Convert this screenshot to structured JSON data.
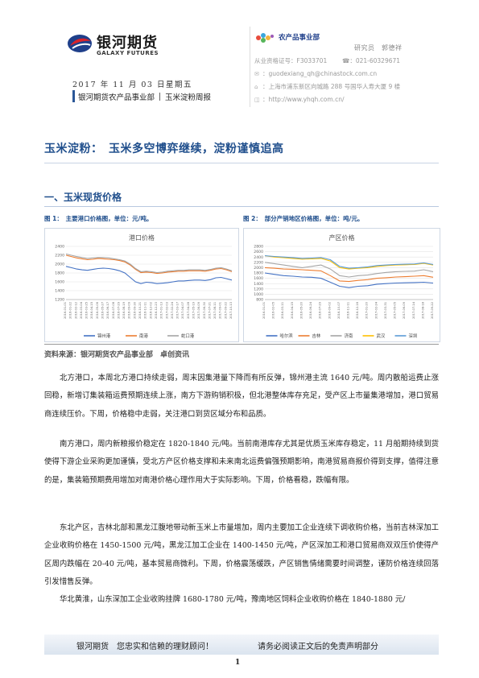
{
  "header": {
    "company_cn": "银河期货",
    "company_en": "GALAXY FUTURES",
    "date": "2017 年 11 月 03 日星期五",
    "brand_left": "银河期货农产品事业部",
    "brand_right": "玉米淀粉周报"
  },
  "contact": {
    "dept_name": "农产品事业部",
    "analyst": "研究员　郭德祥",
    "license": "从业资格证号：F3033701",
    "phone": "☎：021-60329671",
    "email": "guodexiang_qh@chinastock.com.cn",
    "address": "上海市浦东新区向城路 288 号国华人寿大厦 9 楼",
    "website": "http://www.yhqh.com.cn/"
  },
  "title": "玉米淀粉：　玉米多空博弈继续，淀粉谨慎追高",
  "section1": "一、玉米现货价格",
  "fig1_caption": "图 1：　主要港口价格图，单位：元/吨。",
  "fig2_caption": "图 2：　部分产销地区价格图，单位：吨/元。",
  "source": "资料来源：银河期货农产品事业部　卓创资讯",
  "chart_data": [
    {
      "type": "line",
      "title": "港口价格",
      "ylim": [
        1200,
        2400
      ],
      "y_ticks": [
        "2400",
        "2200",
        "2000",
        "1800",
        "1600",
        "1400",
        "1200"
      ],
      "x_ticks": [
        "2016-01-01",
        "2016-01-22",
        "2016-02-12",
        "2016-03-04",
        "2016-03-25",
        "2016-04-15",
        "2016-05-06",
        "2016-05-27",
        "2016-06-17",
        "2016-07-08",
        "2016-07-29",
        "2016-08-19",
        "2016-09-09",
        "2016-09-30",
        "2016-10-21",
        "2016-11-11",
        "2016-12-02",
        "2016-12-23",
        "2017-01-13",
        "2017-02-03",
        "2017-02-24",
        "2017-03-17",
        "2017-04-07",
        "2017-04-28",
        "2017-05-19",
        "2017-06-09",
        "2017-06-30",
        "2017-07-21",
        "2017-08-11",
        "2017-09-01",
        "2017-09-22",
        "2017-10-13"
      ],
      "grid": true,
      "legend_position": "bottom",
      "series": [
        {
          "name": "锦州港",
          "color": "#4472c4",
          "values": [
            1950,
            1920,
            1890,
            1870,
            1860,
            1880,
            1900,
            1910,
            1900,
            1880,
            1850,
            1800,
            1700,
            1600,
            1560,
            1590,
            1580,
            1560,
            1570,
            1580,
            1600,
            1620,
            1620,
            1630,
            1640,
            1640,
            1630,
            1650,
            1690,
            1700,
            1670,
            1640
          ]
        },
        {
          "name": "南港",
          "color": "#ed7d31",
          "values": [
            2200,
            2170,
            2140,
            2120,
            2100,
            2110,
            2130,
            2120,
            2110,
            2100,
            2080,
            2050,
            1980,
            1880,
            1810,
            1820,
            1810,
            1790,
            1800,
            1820,
            1830,
            1840,
            1840,
            1850,
            1850,
            1850,
            1840,
            1860,
            1890,
            1900,
            1870,
            1830
          ]
        },
        {
          "name": "蛇口港",
          "color": "#a5a5a5",
          "values": [
            2230,
            2200,
            2170,
            2150,
            2130,
            2140,
            2150,
            2150,
            2140,
            2120,
            2100,
            2070,
            2000,
            1900,
            1830,
            1840,
            1830,
            1810,
            1820,
            1840,
            1850,
            1860,
            1860,
            1870,
            1870,
            1870,
            1860,
            1880,
            1910,
            1920,
            1890,
            1850
          ]
        }
      ]
    },
    {
      "type": "line",
      "title": "产区价格",
      "ylim": [
        800,
        2800
      ],
      "y_ticks": [
        "2800",
        "2600",
        "2400",
        "2200",
        "2000",
        "1800",
        "1600",
        "1400",
        "1200",
        "1000",
        "800"
      ],
      "x_ticks": [
        "2016-01-01",
        "2016-02-05",
        "2016-03-11",
        "2016-04-15",
        "2016-05-20",
        "2016-06-24",
        "2016-07-29",
        "2016-09-02",
        "2016-10-07",
        "2016-11-11",
        "2016-12-16",
        "2017-01-20",
        "2017-02-24",
        "2017-03-31",
        "2017-05-05",
        "2017-06-09",
        "2017-07-14",
        "2017-08-18",
        "2017-09-22"
      ],
      "grid": true,
      "legend_position": "bottom",
      "series": [
        {
          "name": "哈尔滨",
          "color": "#4472c4",
          "values": [
            1800,
            1750,
            1700,
            1680,
            1650,
            1640,
            1600,
            1450,
            1300,
            1250,
            1300,
            1320,
            1380,
            1400,
            1420,
            1430,
            1440,
            1450,
            1420
          ]
        },
        {
          "name": "吉林",
          "color": "#ed7d31",
          "values": [
            2000,
            1980,
            1950,
            1940,
            1920,
            1900,
            1880,
            1700,
            1500,
            1480,
            1520,
            1550,
            1600,
            1620,
            1650,
            1660,
            1680,
            1700,
            1640
          ]
        },
        {
          "name": "济南",
          "color": "#a5a5a5",
          "values": [
            2200,
            2150,
            2100,
            2050,
            2000,
            2050,
            2100,
            1950,
            1700,
            1650,
            1700,
            1720,
            1780,
            1820,
            1850,
            1860,
            1870,
            1920,
            1850
          ]
        },
        {
          "name": "武汉",
          "color": "#ffc000",
          "values": [
            2450,
            2400,
            2380,
            2350,
            2320,
            2330,
            2350,
            2250,
            2000,
            1950,
            1980,
            2000,
            2050,
            2080,
            2100,
            2110,
            2120,
            2160,
            2100
          ]
        },
        {
          "name": "深圳",
          "color": "#5b9bd5",
          "values": [
            2450,
            2420,
            2400,
            2380,
            2350,
            2360,
            2380,
            2300,
            2050,
            1980,
            2000,
            2030,
            2080,
            2100,
            2120,
            2130,
            2140,
            2180,
            2120
          ]
        }
      ]
    }
  ],
  "paragraphs": [
    "北方港口，本周北方港口持续走弱，周末因集港量下降而有所反弹，锦州港主流 1640 元/吨。周内散船运费止涨回稳，新增订集装箱运费预期连续上涨，南方下游购销积极，但北港整体库存充足，受产区上市量集港增加，港口贸易商连续压价。下周，价格稳中走弱，关注港口到货区域分布和品质。",
    "南方港口，周内新粮报价稳定在 1820-1840 元/吨。当前南港库存尤其是优质玉米库存稳定，11 月船期持续到货使得下游企业采购更加谨慎，受北方产区价格支撑和未来南北运费偏强预期影响，南港贸易商报价得到支撑，值得注意的是，集装箱预期费用增加对南港价格心理作用大于实际影响。下周，价格看稳，跌幅有限。",
    "东北产区，吉林北部和黑龙江腹地带动新玉米上市量增加，周内主要加工企业连续下调收购价格，当前吉林深加工企业收购价格在 1450-1500 元/吨，黑龙江加工企业在 1400-1450 元/吨，产区深加工和港口贸易商双双压价使得产区周内跌幅在 20-40 元/吨，基本贸易商微利。下周，价格震荡缓跌，产区销售情绪需要时间调整，谨防价格连续回落引发惜售反弹。",
    "华北黄淮，山东深加工企业收购挂牌 1680-1780 元/吨，豫南地区饲料企业收购价格在 1840-1880 元/"
  ],
  "footer": {
    "left": "银河期货　您忠实和信赖的理财顾问！",
    "right": "请务必阅读正文后的免责声明部分",
    "page": "1"
  }
}
